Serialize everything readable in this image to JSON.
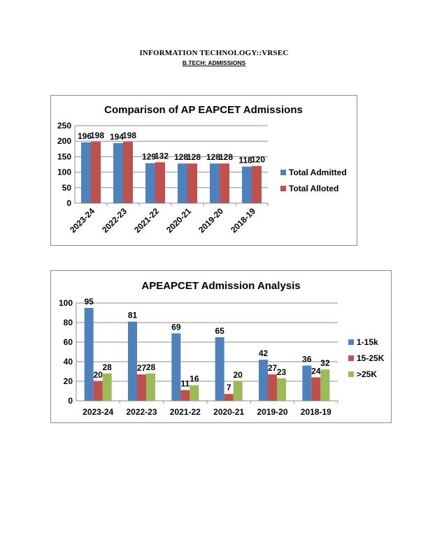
{
  "header": {
    "title": "INFORMATION TECHNOLOGY::VRSEC",
    "subtitle": "B.TECH: ADMISSIONS"
  },
  "chart_data": [
    {
      "type": "bar",
      "title": "Comparison of AP EAPCET Admissions",
      "categories": [
        "2023-24",
        "2022-23",
        "2021-22",
        "2020-21",
        "2019-20",
        "2018-19"
      ],
      "series": [
        {
          "name": "Total Admitted",
          "values": [
            196,
            194,
            129,
            128,
            128,
            118
          ],
          "color": "#4F81BD"
        },
        {
          "name": "Total Alloted",
          "values": [
            198,
            198,
            132,
            128,
            128,
            120
          ],
          "color": "#C0504D"
        }
      ],
      "ylim": [
        0,
        250
      ],
      "yticks": [
        0,
        50,
        100,
        150,
        200,
        250
      ],
      "grid": true,
      "legend": "right",
      "xlabel": "",
      "ylabel": ""
    },
    {
      "type": "bar",
      "title": "APEAPCET Admission Analysis",
      "categories": [
        "2023-24",
        "2022-23",
        "2021-22",
        "2020-21",
        "2019-20",
        "2018-19"
      ],
      "series": [
        {
          "name": "1-15k",
          "values": [
            95,
            81,
            69,
            65,
            42,
            36
          ],
          "color": "#4F81BD"
        },
        {
          "name": "15-25K",
          "values": [
            20,
            27,
            11,
            7,
            27,
            24
          ],
          "color": "#C0504D"
        },
        {
          "name": ">25K",
          "values": [
            28,
            28,
            16,
            20,
            23,
            32
          ],
          "color": "#9BBB59"
        }
      ],
      "ylim": [
        0,
        100
      ],
      "yticks": [
        0,
        20,
        40,
        60,
        80,
        100
      ],
      "grid": true,
      "legend": "right",
      "xlabel": "",
      "ylabel": ""
    }
  ]
}
